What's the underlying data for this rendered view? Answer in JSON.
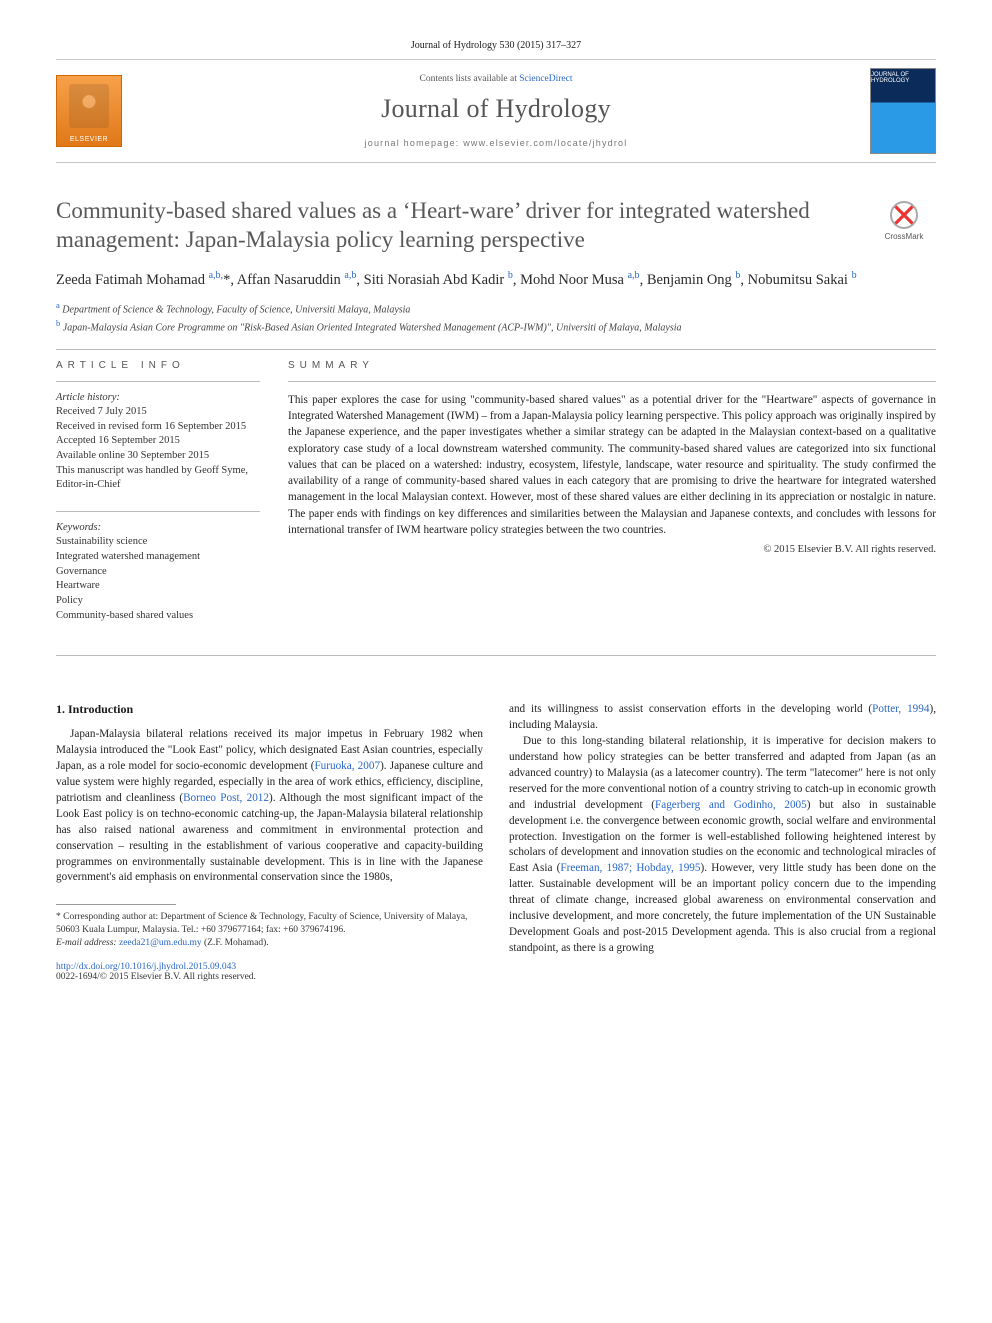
{
  "citation": "Journal of Hydrology 530 (2015) 317–327",
  "header": {
    "contents_prefix": "Contents lists available at ",
    "contents_link": "ScienceDirect",
    "journal_name": "Journal of Hydrology",
    "homepage_label": "journal homepage: www.elsevier.com/locate/jhydrol",
    "publisher_logo_label": "ELSEVIER",
    "cover_label": "JOURNAL OF HYDROLOGY"
  },
  "crossmark_label": "CrossMark",
  "title": "Community-based shared values as a ‘Heart-ware’ driver for integrated watershed management: Japan-Malaysia policy learning perspective",
  "authors_html": "Zeeda Fatimah Mohamad <sup class='aff-sup'>a,b,</sup>*, Affan Nasaruddin <sup class='aff-sup'>a,b</sup>, Siti Norasiah Abd Kadir <sup class='aff-sup'>b</sup>, Mohd Noor Musa <sup class='aff-sup'>a,b</sup>, Benjamin Ong <sup class='aff-sup'>b</sup>, Nobumitsu Sakai <sup class='aff-sup'>b</sup>",
  "affiliations": [
    {
      "sup": "a",
      "text": "Department of Science & Technology, Faculty of Science, Universiti Malaya, Malaysia"
    },
    {
      "sup": "b",
      "text": "Japan-Malaysia Asian Core Programme on \"Risk-Based Asian Oriented Integrated Watershed Management (ACP-IWM)\", Universiti of Malaya, Malaysia"
    }
  ],
  "article_info": {
    "heading": "ARTICLE INFO",
    "history_heading": "Article history:",
    "history": [
      "Received 7 July 2015",
      "Received in revised form 16 September 2015",
      "Accepted 16 September 2015",
      "Available online 30 September 2015",
      "This manuscript was handled by Geoff Syme, Editor-in-Chief"
    ],
    "keywords_heading": "Keywords:",
    "keywords": [
      "Sustainability science",
      "Integrated watershed management",
      "Governance",
      "Heartware",
      "Policy",
      "Community-based shared values"
    ]
  },
  "summary": {
    "heading": "SUMMARY",
    "text": "This paper explores the case for using \"community-based shared values\" as a potential driver for the \"Heartware\" aspects of governance in Integrated Watershed Management (IWM) – from a Japan-Malaysia policy learning perspective. This policy approach was originally inspired by the Japanese experience, and the paper investigates whether a similar strategy can be adapted in the Malaysian context-based on a qualitative exploratory case study of a local downstream watershed community. The community-based shared values are categorized into six functional values that can be placed on a watershed: industry, ecosystem, lifestyle, landscape, water resource and spirituality. The study confirmed the availability of a range of community-based shared values in each category that are promising to drive the heartware for integrated watershed management in the local Malaysian context. However, most of these shared values are either declining in its appreciation or nostalgic in nature. The paper ends with findings on key differences and similarities between the Malaysian and Japanese contexts, and concludes with lessons for international transfer of IWM heartware policy strategies between the two countries.",
    "copyright": "© 2015 Elsevier B.V. All rights reserved."
  },
  "intro": {
    "heading": "1. Introduction",
    "col1": "Japan-Malaysia bilateral relations received its major impetus in February 1982 when Malaysia introduced the \"Look East\" policy, which designated East Asian countries, especially Japan, as a role model for socio-economic development (<a>Furuoka, 2007</a>). Japanese culture and value system were highly regarded, especially in the area of work ethics, efficiency, discipline, patriotism and cleanliness (<a>Borneo Post, 2012</a>). Although the most significant impact of the Look East policy is on techno-economic catching-up, the Japan-Malaysia bilateral relationship has also raised national awareness and commitment in environmental protection and conservation – resulting in the establishment of various cooperative and capacity-building programmes on environmentally sustainable development. This is in line with the Japanese government's aid emphasis on environmental conservation since the 1980s,",
    "col2": "and its willingness to assist conservation efforts in the developing world (<a>Potter, 1994</a>), including Malaysia.<br><span class='indent'></span>Due to this long-standing bilateral relationship, it is imperative for decision makers to understand how policy strategies can be better transferred and adapted from Japan (as an advanced country) to Malaysia (as a latecomer country). The term \"latecomer\" here is not only reserved for the more conventional notion of a country striving to catch-up in economic growth and industrial development (<a>Fagerberg and Godinho, 2005</a>) but also in sustainable development i.e. the convergence between economic growth, social welfare and environmental protection. Investigation on the former is well-established following heightened interest by scholars of development and innovation studies on the economic and technological miracles of East Asia (<a>Freeman, 1987; Hobday, 1995</a>). However, very little study has been done on the latter. Sustainable development will be an important policy concern due to the impending threat of climate change, increased global awareness on environmental conservation and inclusive development, and more concretely, the future implementation of the UN Sustainable Development Goals and post-2015 Development agenda. This is also crucial from a regional standpoint, as there is a growing"
  },
  "footnote": {
    "corresponding": "* Corresponding author at: Department of Science & Technology, Faculty of Science, University of Malaya, 50603 Kuala Lumpur, Malaysia. Tel.: +60 379677164; fax: +60 379674196.",
    "email_label": "E-mail address:",
    "email": "zeeda21@um.edu.my",
    "email_person": "(Z.F. Mohamad).",
    "doi": "http://dx.doi.org/10.1016/j.jhydrol.2015.09.043",
    "issn_line": "0022-1694/© 2015 Elsevier B.V. All rights reserved."
  },
  "colors": {
    "link": "#2a68c8",
    "text": "#1a1a1a",
    "muted": "#585858",
    "rule": "#bbbbbb"
  }
}
